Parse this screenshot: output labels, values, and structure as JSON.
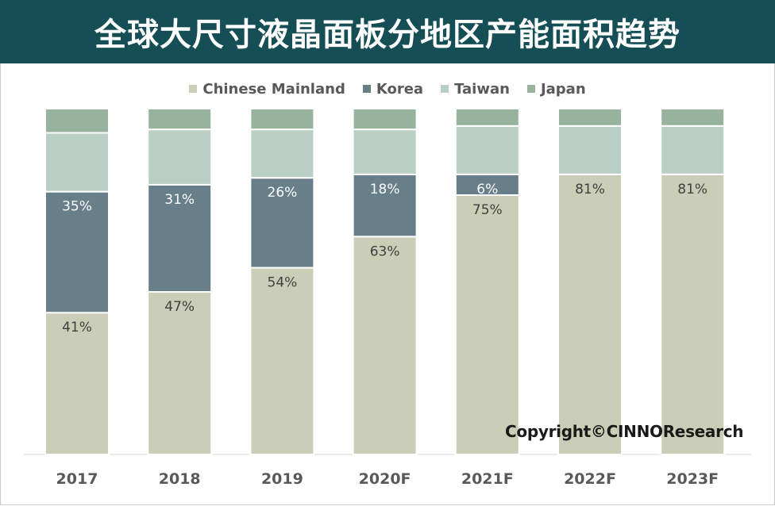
{
  "header": {
    "title": "全球大尺寸液晶面板分地区产能面积趋势"
  },
  "copyright": "Copyright©CINNOResearch",
  "chart_data": {
    "type": "bar",
    "stacked": true,
    "normalized": true,
    "title": "全球大尺寸液晶面板分地区产能面积趋势",
    "categories": [
      "2017",
      "2018",
      "2019",
      "2020F",
      "2021F",
      "2022F",
      "2023F"
    ],
    "series": [
      {
        "name": "Chinese Mainland",
        "color": "#cbceb6",
        "values": [
          41,
          47,
          54,
          63,
          75,
          81,
          81
        ],
        "labels": [
          "41%",
          "47%",
          "54%",
          "63%",
          "75%",
          "81%",
          "81%"
        ]
      },
      {
        "name": "Korea",
        "color": "#687f8a",
        "values": [
          35,
          31,
          26,
          18,
          6,
          0,
          0
        ],
        "labels": [
          "35%",
          "31%",
          "26%",
          "18%",
          "6%",
          "",
          ""
        ]
      },
      {
        "name": "Taiwan",
        "color": "#b9cfc3",
        "values": [
          17,
          16,
          14,
          13,
          14,
          14,
          14
        ],
        "labels": [
          "",
          "",
          "",
          "",
          "",
          "",
          ""
        ]
      },
      {
        "name": "Japan",
        "color": "#98b39d",
        "values": [
          7,
          6,
          6,
          6,
          5,
          5,
          5
        ],
        "labels": [
          "",
          "",
          "",
          "",
          "",
          "",
          ""
        ]
      }
    ],
    "ylim": [
      0,
      100
    ],
    "grid": false,
    "legend_position": "top"
  }
}
